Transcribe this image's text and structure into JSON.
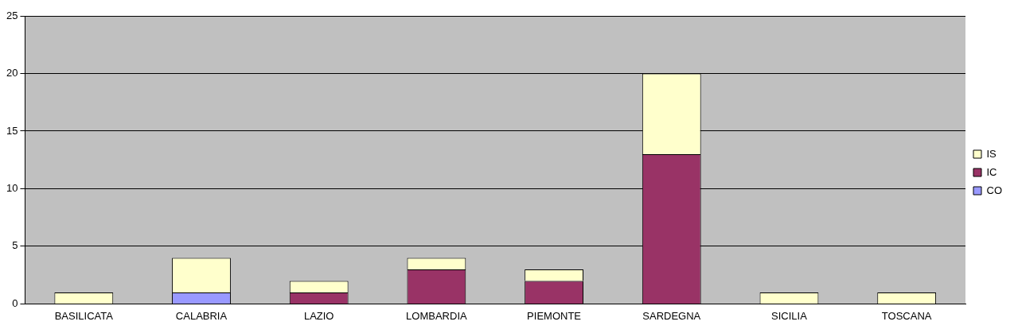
{
  "chart_data": {
    "type": "bar",
    "stacked": true,
    "categories": [
      "BASILICATA",
      "CALABRIA",
      "LAZIO",
      "LOMBARDIA",
      "PIEMONTE",
      "SARDEGNA",
      "SICILIA",
      "TOSCANA"
    ],
    "series": [
      {
        "name": "CO",
        "color": "#9999ff",
        "values": [
          0,
          1,
          0,
          0,
          0,
          0,
          0,
          0
        ]
      },
      {
        "name": "IC",
        "color": "#993366",
        "values": [
          0,
          0,
          1,
          3,
          2,
          13,
          0,
          0
        ]
      },
      {
        "name": "IS",
        "color": "#ffffcc",
        "values": [
          1,
          3,
          1,
          1,
          1,
          7,
          1,
          1
        ]
      }
    ],
    "ylim": [
      0,
      25
    ],
    "yticks": [
      0,
      5,
      10,
      15,
      20,
      25
    ],
    "grid": "y",
    "legend": "right"
  }
}
